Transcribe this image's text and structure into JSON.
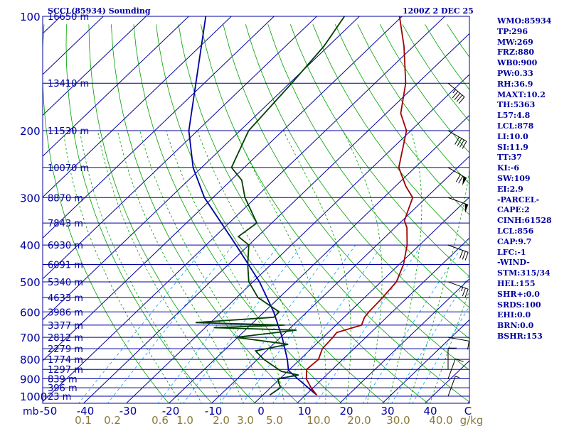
{
  "header": {
    "station": "SCCL(85934) Sounding",
    "time": "1200Z  2 DEC 25"
  },
  "indices": [
    "WMO:85934",
    "TP:296",
    "MW:269",
    "FRZ:880",
    "WB0:900",
    "PW:0.33",
    "RH:36.9",
    "MAXT:10.2",
    "TH:5363",
    "L57:4.8",
    "LCL:878",
    "LI:10.0",
    "SI:11.9",
    "TT:37",
    "KI:-6",
    "SW:109",
    "EI:2.9",
    "-PARCEL-",
    "CAPE:2",
    "CINH:61528",
    "LCL:856",
    "CAP:9.7",
    "LFC:-1",
    "-WIND-",
    "STM:315/34",
    "HEL:155",
    "SHR+:0.0",
    "SRDS:100",
    "EHI:0.0",
    "BRN:0.0",
    "BSHR:153"
  ],
  "colors": {
    "isobar": "#0000a0",
    "isotherm": "#0000a0",
    "dry_adiabat": "#00a000",
    "moist_adiabat": "#00a000",
    "mixing_ratio": "#00a0ff",
    "temperature": "#a00000",
    "dewpoint": "#004000",
    "parcel": "#0000a0",
    "axis_text": "#0000a0",
    "mixing_text": "#8b7a3a"
  },
  "chart_data": {
    "type": "line",
    "title": "SCCL(85934) Sounding",
    "pressure_label": "mb",
    "temperature_label": "C",
    "mixing_ratio_label": "g/kg",
    "pressure_ticks": [
      100,
      200,
      300,
      400,
      500,
      600,
      700,
      800,
      900,
      1000
    ],
    "temperature_ticks": [
      "-50",
      "-40",
      "-30",
      "-20",
      "-10",
      "0",
      "10",
      "20",
      "30",
      "40",
      "C"
    ],
    "mixing_ratio_ticks": [
      "0.1",
      "0.2",
      "0.6",
      "1.0",
      "2.0",
      "3.0",
      "5.0",
      "10.0",
      "20.0",
      "30.0",
      "40.0",
      "g/kg"
    ],
    "height_labels": [
      {
        "p": 100,
        "label": "16650 m"
      },
      {
        "p": 150,
        "label": "13410 m"
      },
      {
        "p": 200,
        "label": "11530 m"
      },
      {
        "p": 250,
        "label": "10070 m"
      },
      {
        "p": 300,
        "label": "8870 m"
      },
      {
        "p": 350,
        "label": "7843 m"
      },
      {
        "p": 400,
        "label": "6930 m"
      },
      {
        "p": 450,
        "label": "6091 m"
      },
      {
        "p": 500,
        "label": "5340 m"
      },
      {
        "p": 550,
        "label": "4633 m"
      },
      {
        "p": 600,
        "label": "3986 m"
      },
      {
        "p": 650,
        "label": "3377 m"
      },
      {
        "p": 700,
        "label": "2812 m"
      },
      {
        "p": 750,
        "label": "2279 m"
      },
      {
        "p": 800,
        "label": "1774 m"
      },
      {
        "p": 850,
        "label": "1297 m"
      },
      {
        "p": 900,
        "label": "839 m"
      },
      {
        "p": 950,
        "label": "396 m"
      },
      {
        "p": 1000,
        "label": "23 m"
      }
    ],
    "temperature": [
      {
        "p": 993,
        "t": 12.6
      },
      {
        "p": 950,
        "t": 9.5
      },
      {
        "p": 900,
        "t": 6.2
      },
      {
        "p": 850,
        "t": 4.0
      },
      {
        "p": 800,
        "t": 4.3
      },
      {
        "p": 750,
        "t": 2.6
      },
      {
        "p": 700,
        "t": 2.3
      },
      {
        "p": 680,
        "t": 2.0
      },
      {
        "p": 650,
        "t": 6.0
      },
      {
        "p": 620,
        "t": 4.8
      },
      {
        "p": 600,
        "t": 4.5
      },
      {
        "p": 550,
        "t": 4.2
      },
      {
        "p": 500,
        "t": 3.6
      },
      {
        "p": 450,
        "t": 1.0
      },
      {
        "p": 400,
        "t": -2.9
      },
      {
        "p": 360,
        "t": -7.2
      },
      {
        "p": 345,
        "t": -9.5
      },
      {
        "p": 300,
        "t": -13.2
      },
      {
        "p": 280,
        "t": -17.6
      },
      {
        "p": 250,
        "t": -23.8
      },
      {
        "p": 200,
        "t": -31.0
      },
      {
        "p": 180,
        "t": -36.6
      },
      {
        "p": 150,
        "t": -42.8
      },
      {
        "p": 120,
        "t": -52.2
      },
      {
        "p": 100,
        "t": -60.6
      },
      {
        "p": 97,
        "t": -60.6
      }
    ],
    "dewpoint": [
      {
        "p": 993,
        "t": 1.6
      },
      {
        "p": 950,
        "t": 2.3
      },
      {
        "p": 900,
        "t": -0.5
      },
      {
        "p": 880,
        "t": 3.5
      },
      {
        "p": 860,
        "t": -1.5
      },
      {
        "p": 800,
        "t": -8.5
      },
      {
        "p": 760,
        "t": -12.5
      },
      {
        "p": 730,
        "t": -6.5
      },
      {
        "p": 700,
        "t": -20.5
      },
      {
        "p": 670,
        "t": -8.0
      },
      {
        "p": 660,
        "t": -28.0
      },
      {
        "p": 650,
        "t": -12.0
      },
      {
        "p": 640,
        "t": -33.5
      },
      {
        "p": 620,
        "t": -16.5
      },
      {
        "p": 600,
        "t": -16.5
      },
      {
        "p": 550,
        "t": -25.0
      },
      {
        "p": 500,
        "t": -31.0
      },
      {
        "p": 450,
        "t": -35.5
      },
      {
        "p": 400,
        "t": -40.0
      },
      {
        "p": 380,
        "t": -44.5
      },
      {
        "p": 350,
        "t": -43.5
      },
      {
        "p": 300,
        "t": -52.5
      },
      {
        "p": 270,
        "t": -57.5
      },
      {
        "p": 250,
        "t": -63.0
      },
      {
        "p": 200,
        "t": -68.0
      },
      {
        "p": 150,
        "t": -69.5
      },
      {
        "p": 120,
        "t": -71.0
      },
      {
        "p": 100,
        "t": -73.5
      }
    ],
    "parcel": [
      {
        "p": 993,
        "t": 12.6
      },
      {
        "p": 950,
        "t": 8.8
      },
      {
        "p": 900,
        "t": 4.2
      },
      {
        "p": 856,
        "t": 0.0
      },
      {
        "p": 800,
        "t": -3.0
      },
      {
        "p": 700,
        "t": -9.6
      },
      {
        "p": 600,
        "t": -17.8
      },
      {
        "p": 500,
        "t": -28.5
      },
      {
        "p": 400,
        "t": -43.0
      },
      {
        "p": 300,
        "t": -62.0
      },
      {
        "p": 250,
        "t": -72.0
      },
      {
        "p": 200,
        "t": -82.0
      },
      {
        "p": 100,
        "t": -106.0
      }
    ],
    "wind_barbs": [
      {
        "p": 150,
        "dir": 310,
        "kt": 45
      },
      {
        "p": 200,
        "dir": 300,
        "kt": 40
      },
      {
        "p": 250,
        "dir": 300,
        "kt": 70
      },
      {
        "p": 300,
        "dir": 290,
        "kt": 50
      },
      {
        "p": 400,
        "dir": 290,
        "kt": 30
      },
      {
        "p": 500,
        "dir": 290,
        "kt": 25
      },
      {
        "p": 700,
        "dir": 280,
        "kt": 10
      },
      {
        "p": 850,
        "dir": 180,
        "kt": 10
      },
      {
        "p": 900,
        "dir": 200,
        "kt": 10
      },
      {
        "p": 1000,
        "dir": 200,
        "kt": 5
      }
    ],
    "xlim": [
      -50,
      50
    ],
    "ylim": [
      1050,
      100
    ],
    "grid": true
  }
}
